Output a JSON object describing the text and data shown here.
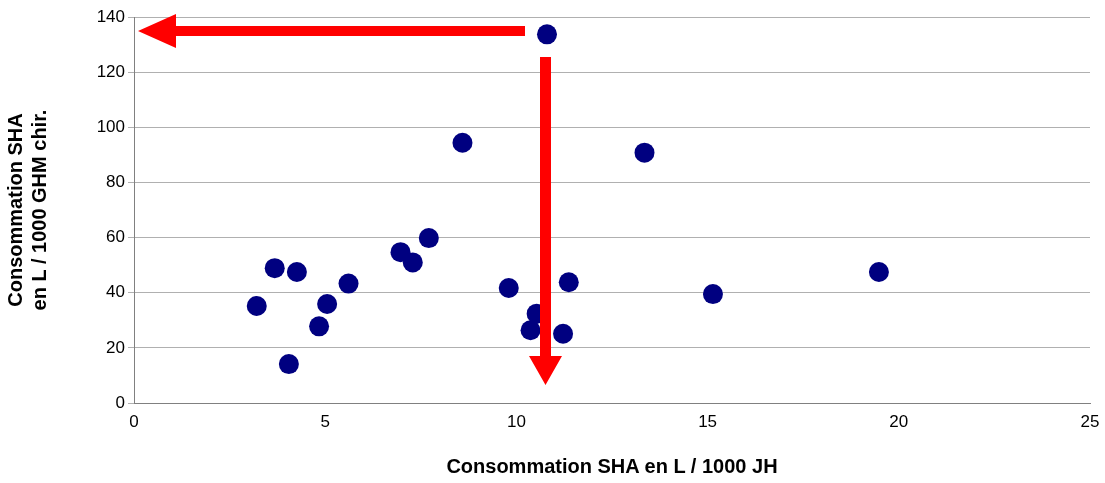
{
  "chart_data": {
    "type": "scatter",
    "xlabel": "Consommation SHA en L / 1000 JH",
    "ylabel": "Consommation SHA\nen L / 1000 GHM chir.",
    "xlim": [
      0,
      25
    ],
    "xticks": [
      0,
      5,
      10,
      15,
      20,
      25
    ],
    "ylim": [
      0,
      140
    ],
    "yticks": [
      0,
      20,
      40,
      60,
      80,
      100,
      120,
      140
    ],
    "grid": "y",
    "legend": false,
    "marker": "circle",
    "series": [
      {
        "color": "#000080",
        "x": [
          3.21,
          3.68,
          4.26,
          4.05,
          5.05,
          4.84,
          5.61,
          6.97,
          7.29,
          7.71,
          8.59,
          13.35,
          9.8,
          11.37,
          10.53,
          10.37,
          11.22,
          10.8,
          15.14,
          19.48
        ],
        "values": [
          35.2,
          48.9,
          47.5,
          14.1,
          35.9,
          27.8,
          43.3,
          54.7,
          51,
          59.8,
          94.4,
          90.8,
          41.7,
          43.8,
          32.4,
          26.4,
          25.1,
          133.7,
          39.5,
          47.5
        ]
      }
    ]
  }
}
